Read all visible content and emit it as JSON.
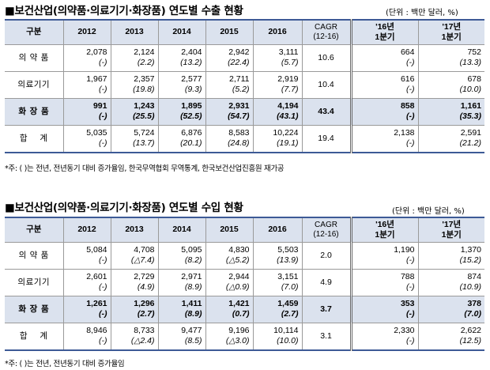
{
  "export_section": {
    "title": "■보건산업(의약품·의료기기·화장품) 연도별 수출 현황",
    "unit": "(단위 : 백만 달러, %)",
    "columns": {
      "label": "구분",
      "y2012": "2012",
      "y2013": "2013",
      "y2014": "2014",
      "y2015": "2015",
      "y2016": "2016",
      "cagr_line1": "CAGR",
      "cagr_line2": "(12-16)",
      "q16_line1": "'16년",
      "q16_line2": "1분기",
      "q17_line1": "'17년",
      "q17_line2": "1분기"
    },
    "rows": [
      {
        "label": "의 약 품",
        "y2012": "2,078",
        "g2012": "(-)",
        "y2013": "2,124",
        "g2013": "(2.2)",
        "y2014": "2,404",
        "g2014": "(13.2)",
        "y2015": "2,942",
        "g2015": "(22.4)",
        "y2016": "3,111",
        "g2016": "(5.7)",
        "cagr": "10.6",
        "q16": "664",
        "gq16": "(-)",
        "q17": "752",
        "gq17": "(13.3)"
      },
      {
        "label": "의료기기",
        "y2012": "1,967",
        "g2012": "(-)",
        "y2013": "2,357",
        "g2013": "(19.8)",
        "y2014": "2,577",
        "g2014": "(9.3)",
        "y2015": "2,711",
        "g2015": "(5.2)",
        "y2016": "2,919",
        "g2016": "(7.7)",
        "cagr": "10.4",
        "q16": "616",
        "gq16": "(-)",
        "q17": "678",
        "gq17": "(10.0)"
      },
      {
        "label": "화 장 품",
        "y2012": "991",
        "g2012": "(-)",
        "y2013": "1,243",
        "g2013": "(25.5)",
        "y2014": "1,895",
        "g2014": "(52.5)",
        "y2015": "2,931",
        "g2015": "(54.7)",
        "y2016": "4,194",
        "g2016": "(43.1)",
        "cagr": "43.4",
        "q16": "858",
        "gq16": "(-)",
        "q17": "1,161",
        "gq17": "(35.3)"
      },
      {
        "label": "합    계",
        "y2012": "5,035",
        "g2012": "(-)",
        "y2013": "5,724",
        "g2013": "(13.7)",
        "y2014": "6,876",
        "g2014": "(20.1)",
        "y2015": "8,583",
        "g2015": "(24.8)",
        "y2016": "10,224",
        "g2016": "(19.1)",
        "cagr": "19.4",
        "q16": "2,138",
        "gq16": "(-)",
        "q17": "2,591",
        "gq17": "(21.2)"
      }
    ],
    "note": "*주: ( )는 전년, 전년동기 대비 증가율임, 한국무역협회 무역통계, 한국보건산업진흥원 재가공"
  },
  "import_section": {
    "title": "■보건산업(의약품·의료기기·화장품) 연도별 수입 현황",
    "unit": "(단위 : 백만 달러, %)",
    "columns": {
      "label": "구분",
      "y2012": "2012",
      "y2013": "2013",
      "y2014": "2014",
      "y2015": "2015",
      "y2016": "2016",
      "cagr_line1": "CAGR",
      "cagr_line2": "(12-16)",
      "q16_line1": "'16년",
      "q16_line2": "1분기",
      "q17_line1": "'17년",
      "q17_line2": "1분기"
    },
    "rows": [
      {
        "label": "의 약 품",
        "y2012": "5,084",
        "g2012": "(-)",
        "y2013": "4,708",
        "g2013": "(△7.4)",
        "y2014": "5,095",
        "g2014": "(8.2)",
        "y2015": "4,830",
        "g2015": "(△5.2)",
        "y2016": "5,503",
        "g2016": "(13.9)",
        "cagr": "2.0",
        "q16": "1,190",
        "gq16": "(-)",
        "q17": "1,370",
        "gq17": "(15.2)"
      },
      {
        "label": "의료기기",
        "y2012": "2,601",
        "g2012": "(-)",
        "y2013": "2,729",
        "g2013": "(4.9)",
        "y2014": "2,971",
        "g2014": "(8.9)",
        "y2015": "2,944",
        "g2015": "(△0.9)",
        "y2016": "3,151",
        "g2016": "(7.0)",
        "cagr": "4.9",
        "q16": "788",
        "gq16": "(-)",
        "q17": "874",
        "gq17": "(10.9)"
      },
      {
        "label": "화 장 품",
        "y2012": "1,261",
        "g2012": "(-)",
        "y2013": "1,296",
        "g2013": "(2.7)",
        "y2014": "1,411",
        "g2014": "(8.9)",
        "y2015": "1,421",
        "g2015": "(0.7)",
        "y2016": "1,459",
        "g2016": "(2.7)",
        "cagr": "3.7",
        "q16": "353",
        "gq16": "(-)",
        "q17": "378",
        "gq17": "(7.0)"
      },
      {
        "label": "합    계",
        "y2012": "8,946",
        "g2012": "(-)",
        "y2013": "8,733",
        "g2013": "(△2.4)",
        "y2014": "9,477",
        "g2014": "(8.5)",
        "y2015": "9,196",
        "g2015": "(△3.0)",
        "y2016": "10,114",
        "g2016": "(10.0)",
        "cagr": "3.1",
        "q16": "2,330",
        "gq16": "(-)",
        "q17": "2,622",
        "gq17": "(12.5)"
      }
    ],
    "note": "*주: ( )는 전년, 전년동기 대비 증가율임"
  }
}
